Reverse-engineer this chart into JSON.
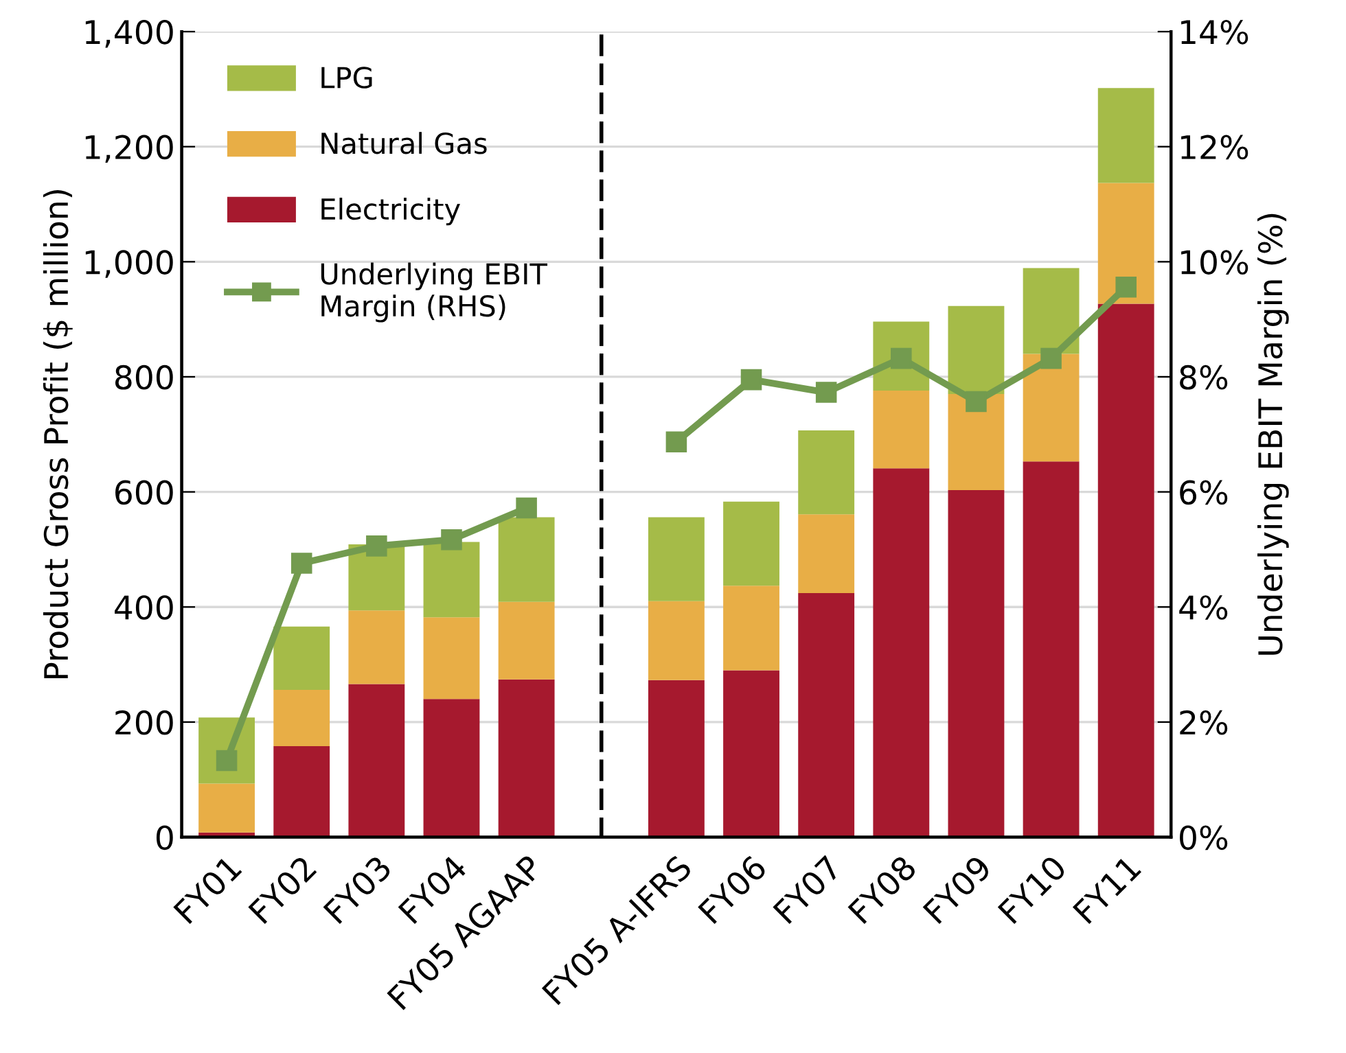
{
  "chart_data": {
    "type": "bar",
    "stacked": true,
    "ylabel": "Product Gross Profit ($ million)",
    "y2label": "Underlying EBIT Margin (%)",
    "categories": [
      "FY01",
      "FY02",
      "FY03",
      "FY04",
      "FY05 AGAAP",
      null,
      "FY05 A-IFRS",
      "FY06",
      "FY07",
      "FY08",
      "FY09",
      "FY10",
      "FY11"
    ],
    "series": [
      {
        "name": "Electricity",
        "color": "#a6192e",
        "values": [
          8,
          158,
          266,
          240,
          274,
          null,
          273,
          290,
          424,
          641,
          603,
          653,
          927
        ]
      },
      {
        "name": "Natural Gas",
        "color": "#e8ae46",
        "values": [
          85,
          98,
          128,
          142,
          135,
          null,
          137,
          147,
          137,
          135,
          167,
          187,
          210
        ]
      },
      {
        "name": "LPG",
        "color": "#a5bb48",
        "values": [
          115,
          110,
          115,
          131,
          147,
          null,
          146,
          146,
          146,
          120,
          153,
          149,
          165
        ]
      },
      {
        "name": "Underlying EBIT Margin (RHS)",
        "type": "line",
        "axis": "y2",
        "color": "#739b4f",
        "marker": "square",
        "values": [
          1.33,
          4.76,
          5.06,
          5.17,
          5.72,
          null,
          6.87,
          7.95,
          7.73,
          8.32,
          7.57,
          8.32,
          9.56
        ]
      }
    ],
    "ylim": [
      0,
      1400
    ],
    "yticks": [
      0,
      {
        "value": 200,
        "label": "200"
      },
      {
        "value": 400,
        "label": "400"
      },
      {
        "value": 600,
        "label": "600"
      },
      {
        "value": 800,
        "label": "800"
      },
      {
        "value": 1000,
        "label": "1,000"
      },
      {
        "value": 1200,
        "label": "1,200"
      },
      {
        "value": 1400,
        "label": "1,400"
      }
    ],
    "y2lim": [
      0,
      14
    ],
    "y2ticks": [
      {
        "value": 0,
        "label": "0%"
      },
      {
        "value": 2,
        "label": "2%"
      },
      {
        "value": 4,
        "label": "4%"
      },
      {
        "value": 6,
        "label": "6%"
      },
      {
        "value": 8,
        "label": "8%"
      },
      {
        "value": 10,
        "label": "10%"
      },
      {
        "value": 12,
        "label": "12%"
      },
      {
        "value": 14,
        "label": "14%"
      }
    ],
    "grid": "y",
    "legend": "top left"
  }
}
